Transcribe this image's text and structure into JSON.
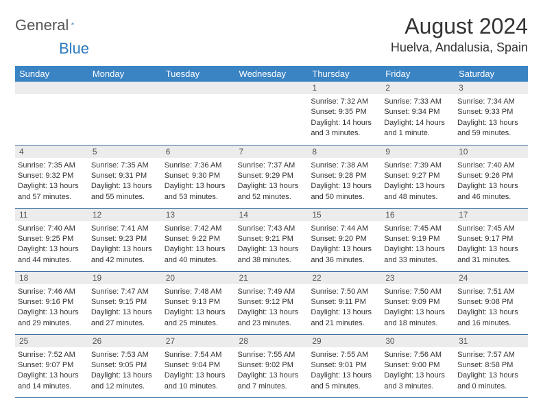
{
  "logo": {
    "word1": "General",
    "word2": "Blue"
  },
  "title": "August 2024",
  "location": "Huelva, Andalusia, Spain",
  "day_headers": [
    "Sunday",
    "Monday",
    "Tuesday",
    "Wednesday",
    "Thursday",
    "Friday",
    "Saturday"
  ],
  "colors": {
    "header_bg": "#3b84c4",
    "header_fg": "#ffffff",
    "daynum_bg": "#ececec",
    "border": "#3b6ea0",
    "logo_blue": "#2b7abf"
  },
  "weeks": [
    [
      {
        "empty": true
      },
      {
        "empty": true
      },
      {
        "empty": true
      },
      {
        "empty": true
      },
      {
        "num": "1",
        "sunrise": "Sunrise: 7:32 AM",
        "sunset": "Sunset: 9:35 PM",
        "daylight": "Daylight: 14 hours and 3 minutes."
      },
      {
        "num": "2",
        "sunrise": "Sunrise: 7:33 AM",
        "sunset": "Sunset: 9:34 PM",
        "daylight": "Daylight: 14 hours and 1 minute."
      },
      {
        "num": "3",
        "sunrise": "Sunrise: 7:34 AM",
        "sunset": "Sunset: 9:33 PM",
        "daylight": "Daylight: 13 hours and 59 minutes."
      }
    ],
    [
      {
        "num": "4",
        "sunrise": "Sunrise: 7:35 AM",
        "sunset": "Sunset: 9:32 PM",
        "daylight": "Daylight: 13 hours and 57 minutes."
      },
      {
        "num": "5",
        "sunrise": "Sunrise: 7:35 AM",
        "sunset": "Sunset: 9:31 PM",
        "daylight": "Daylight: 13 hours and 55 minutes."
      },
      {
        "num": "6",
        "sunrise": "Sunrise: 7:36 AM",
        "sunset": "Sunset: 9:30 PM",
        "daylight": "Daylight: 13 hours and 53 minutes."
      },
      {
        "num": "7",
        "sunrise": "Sunrise: 7:37 AM",
        "sunset": "Sunset: 9:29 PM",
        "daylight": "Daylight: 13 hours and 52 minutes."
      },
      {
        "num": "8",
        "sunrise": "Sunrise: 7:38 AM",
        "sunset": "Sunset: 9:28 PM",
        "daylight": "Daylight: 13 hours and 50 minutes."
      },
      {
        "num": "9",
        "sunrise": "Sunrise: 7:39 AM",
        "sunset": "Sunset: 9:27 PM",
        "daylight": "Daylight: 13 hours and 48 minutes."
      },
      {
        "num": "10",
        "sunrise": "Sunrise: 7:40 AM",
        "sunset": "Sunset: 9:26 PM",
        "daylight": "Daylight: 13 hours and 46 minutes."
      }
    ],
    [
      {
        "num": "11",
        "sunrise": "Sunrise: 7:40 AM",
        "sunset": "Sunset: 9:25 PM",
        "daylight": "Daylight: 13 hours and 44 minutes."
      },
      {
        "num": "12",
        "sunrise": "Sunrise: 7:41 AM",
        "sunset": "Sunset: 9:23 PM",
        "daylight": "Daylight: 13 hours and 42 minutes."
      },
      {
        "num": "13",
        "sunrise": "Sunrise: 7:42 AM",
        "sunset": "Sunset: 9:22 PM",
        "daylight": "Daylight: 13 hours and 40 minutes."
      },
      {
        "num": "14",
        "sunrise": "Sunrise: 7:43 AM",
        "sunset": "Sunset: 9:21 PM",
        "daylight": "Daylight: 13 hours and 38 minutes."
      },
      {
        "num": "15",
        "sunrise": "Sunrise: 7:44 AM",
        "sunset": "Sunset: 9:20 PM",
        "daylight": "Daylight: 13 hours and 36 minutes."
      },
      {
        "num": "16",
        "sunrise": "Sunrise: 7:45 AM",
        "sunset": "Sunset: 9:19 PM",
        "daylight": "Daylight: 13 hours and 33 minutes."
      },
      {
        "num": "17",
        "sunrise": "Sunrise: 7:45 AM",
        "sunset": "Sunset: 9:17 PM",
        "daylight": "Daylight: 13 hours and 31 minutes."
      }
    ],
    [
      {
        "num": "18",
        "sunrise": "Sunrise: 7:46 AM",
        "sunset": "Sunset: 9:16 PM",
        "daylight": "Daylight: 13 hours and 29 minutes."
      },
      {
        "num": "19",
        "sunrise": "Sunrise: 7:47 AM",
        "sunset": "Sunset: 9:15 PM",
        "daylight": "Daylight: 13 hours and 27 minutes."
      },
      {
        "num": "20",
        "sunrise": "Sunrise: 7:48 AM",
        "sunset": "Sunset: 9:13 PM",
        "daylight": "Daylight: 13 hours and 25 minutes."
      },
      {
        "num": "21",
        "sunrise": "Sunrise: 7:49 AM",
        "sunset": "Sunset: 9:12 PM",
        "daylight": "Daylight: 13 hours and 23 minutes."
      },
      {
        "num": "22",
        "sunrise": "Sunrise: 7:50 AM",
        "sunset": "Sunset: 9:11 PM",
        "daylight": "Daylight: 13 hours and 21 minutes."
      },
      {
        "num": "23",
        "sunrise": "Sunrise: 7:50 AM",
        "sunset": "Sunset: 9:09 PM",
        "daylight": "Daylight: 13 hours and 18 minutes."
      },
      {
        "num": "24",
        "sunrise": "Sunrise: 7:51 AM",
        "sunset": "Sunset: 9:08 PM",
        "daylight": "Daylight: 13 hours and 16 minutes."
      }
    ],
    [
      {
        "num": "25",
        "sunrise": "Sunrise: 7:52 AM",
        "sunset": "Sunset: 9:07 PM",
        "daylight": "Daylight: 13 hours and 14 minutes."
      },
      {
        "num": "26",
        "sunrise": "Sunrise: 7:53 AM",
        "sunset": "Sunset: 9:05 PM",
        "daylight": "Daylight: 13 hours and 12 minutes."
      },
      {
        "num": "27",
        "sunrise": "Sunrise: 7:54 AM",
        "sunset": "Sunset: 9:04 PM",
        "daylight": "Daylight: 13 hours and 10 minutes."
      },
      {
        "num": "28",
        "sunrise": "Sunrise: 7:55 AM",
        "sunset": "Sunset: 9:02 PM",
        "daylight": "Daylight: 13 hours and 7 minutes."
      },
      {
        "num": "29",
        "sunrise": "Sunrise: 7:55 AM",
        "sunset": "Sunset: 9:01 PM",
        "daylight": "Daylight: 13 hours and 5 minutes."
      },
      {
        "num": "30",
        "sunrise": "Sunrise: 7:56 AM",
        "sunset": "Sunset: 9:00 PM",
        "daylight": "Daylight: 13 hours and 3 minutes."
      },
      {
        "num": "31",
        "sunrise": "Sunrise: 7:57 AM",
        "sunset": "Sunset: 8:58 PM",
        "daylight": "Daylight: 13 hours and 0 minutes."
      }
    ]
  ]
}
